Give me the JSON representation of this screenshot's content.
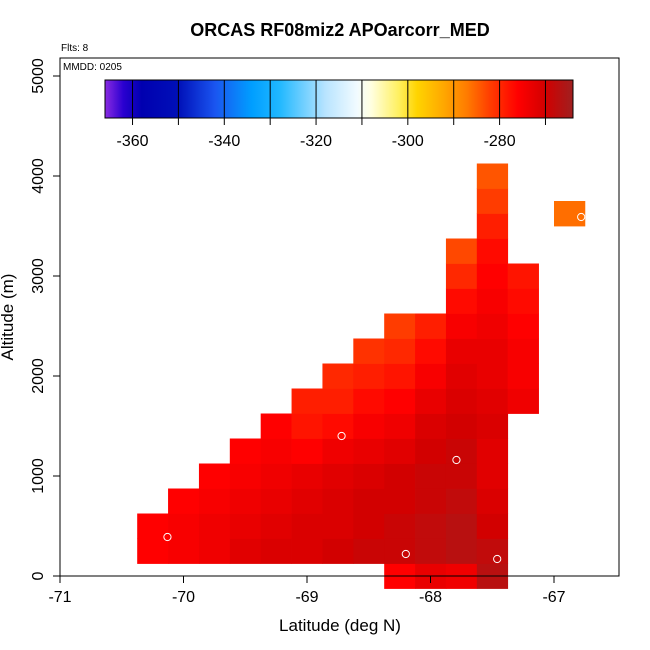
{
  "chart_data": {
    "type": "heatmap",
    "title": "ORCAS RF08miz2 APOarcorr_MED",
    "annotations": {
      "flights": "Flts: 8",
      "mmdd": "MMDD: 0205"
    },
    "xlabel": "Latitude (deg N)",
    "ylabel": "Altitude (m)",
    "xlim": [
      -71,
      -66.5
    ],
    "ylim": [
      0,
      5200
    ],
    "x_ticks": [
      {
        "value": -71,
        "label": "-71"
      },
      {
        "value": -70,
        "label": "-70"
      },
      {
        "value": -69,
        "label": "-69"
      },
      {
        "value": -68,
        "label": "-68"
      },
      {
        "value": -67,
        "label": "-67"
      }
    ],
    "y_ticks": [
      {
        "value": 0,
        "label": "0"
      },
      {
        "value": 1000,
        "label": "1000"
      },
      {
        "value": 2000,
        "label": "2000"
      },
      {
        "value": 3000,
        "label": "3000"
      },
      {
        "value": 4000,
        "label": "4000"
      },
      {
        "value": 5000,
        "label": "5000"
      }
    ],
    "colorbar": {
      "min": -366,
      "max": -264,
      "ticks": [
        {
          "value": -360,
          "label": "-360"
        },
        {
          "value": -340,
          "label": "-340"
        },
        {
          "value": -320,
          "label": "-320"
        },
        {
          "value": -300,
          "label": "-300"
        },
        {
          "value": -280,
          "label": "-280"
        }
      ],
      "dividers": [
        -360,
        -350,
        -340,
        -330,
        -320,
        -310,
        -300,
        -290,
        -280,
        -270
      ],
      "stops": [
        {
          "value": -366,
          "color": "#8a2be2"
        },
        {
          "value": -362,
          "color": "#2a00d0"
        },
        {
          "value": -358,
          "color": "#0000b0"
        },
        {
          "value": -350,
          "color": "#0010b8"
        },
        {
          "value": -342,
          "color": "#1a55f0"
        },
        {
          "value": -334,
          "color": "#009eff"
        },
        {
          "value": -328,
          "color": "#20b8ff"
        },
        {
          "value": -318,
          "color": "#b8e4ff"
        },
        {
          "value": -311,
          "color": "#f2fbff"
        },
        {
          "value": -308,
          "color": "#ffffe0"
        },
        {
          "value": -302,
          "color": "#fff060"
        },
        {
          "value": -298,
          "color": "#ffd400"
        },
        {
          "value": -292,
          "color": "#ffa600"
        },
        {
          "value": -287,
          "color": "#ff7a00"
        },
        {
          "value": -282,
          "color": "#ff3c00"
        },
        {
          "value": -276,
          "color": "#ff0000"
        },
        {
          "value": -270,
          "color": "#d20000"
        },
        {
          "value": -267,
          "color": "#b81010"
        },
        {
          "value": -264,
          "color": "#a02020"
        }
      ]
    },
    "grid": {
      "x_start": -70.25,
      "dx": 0.25,
      "y_start": 250,
      "dy": 250,
      "columns": [
        {
          "y0": 250,
          "values": [
            -276,
            -276
          ]
        },
        {
          "y0": 250,
          "values": [
            -275,
            -275,
            -276
          ]
        },
        {
          "y0": 250,
          "values": [
            -274,
            -274,
            -275,
            -276
          ]
        },
        {
          "y0": 250,
          "values": [
            -272,
            -273,
            -274,
            -275,
            -276
          ]
        },
        {
          "y0": 250,
          "values": [
            -271,
            -272,
            -273,
            -274,
            -275,
            -276
          ]
        },
        {
          "y0": 250,
          "values": [
            -271,
            -271,
            -272,
            -273,
            -276,
            -278,
            -279
          ]
        },
        {
          "y0": 250,
          "values": [
            -270,
            -271,
            -271,
            -272,
            -274,
            -277,
            -279,
            -280
          ]
        },
        {
          "y0": 250,
          "values": [
            -269,
            -270,
            -270,
            -271,
            -273,
            -275,
            -277,
            -279,
            -281
          ]
        },
        {
          "y0": 0,
          "values": [
            -276,
            -269,
            -269,
            -270,
            -270,
            -272,
            -274,
            -276,
            -278,
            -280,
            -282
          ]
        },
        {
          "y0": 0,
          "values": [
            -273,
            -268,
            -268,
            -269,
            -269,
            -270,
            -271,
            -273,
            -275,
            -277,
            -279
          ]
        },
        {
          "y0": 0,
          "values": [
            -274,
            -267,
            -267,
            -268,
            -269,
            -269,
            -270,
            -271,
            -272,
            -273,
            -275,
            -277,
            -280,
            -283
          ]
        },
        {
          "y0": 0,
          "values": [
            -267,
            -268,
            -270,
            -271,
            -272,
            -272,
            -271,
            -272,
            -273,
            -273,
            -274,
            -275,
            -276,
            -277,
            -279,
            -282,
            -284
          ]
        },
        {
          "y0": 1750,
          "values": [
            -274,
            -275,
            -275,
            -276,
            -277,
            -278
          ]
        }
      ],
      "extra_cells": [
        {
          "lat": -66.875,
          "alt": 3625,
          "value": -286
        }
      ]
    },
    "points": [
      {
        "lat": -70.13,
        "alt": 390
      },
      {
        "lat": -68.72,
        "alt": 1400
      },
      {
        "lat": -67.79,
        "alt": 1160
      },
      {
        "lat": -68.2,
        "alt": 220
      },
      {
        "lat": -67.46,
        "alt": 170
      },
      {
        "lat": -66.78,
        "alt": 3590
      }
    ]
  }
}
